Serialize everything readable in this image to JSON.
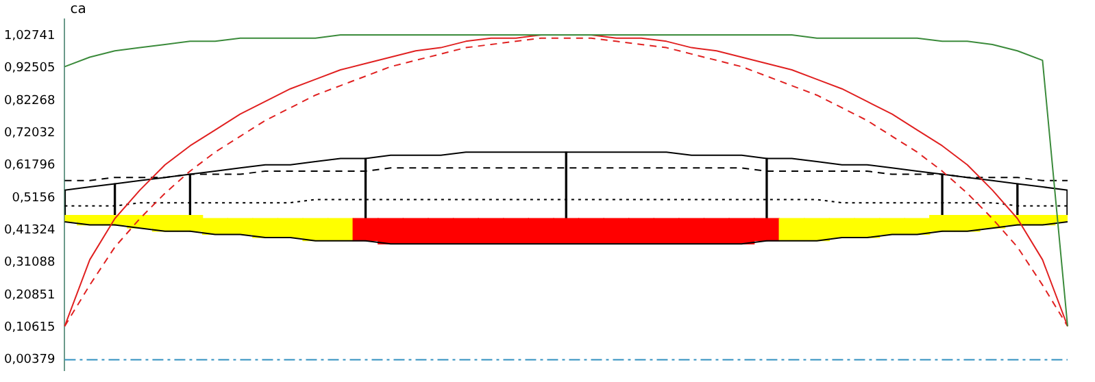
{
  "chart_data": {
    "type": "line",
    "ylabel": "ca",
    "categories": [
      null,
      null,
      null,
      null,
      null,
      null,
      null,
      null,
      null,
      null,
      null,
      null,
      null,
      null,
      null,
      null,
      null,
      null,
      null,
      null,
      null,
      null,
      null,
      null,
      null,
      null,
      null,
      null,
      null,
      null,
      null,
      null,
      null,
      null,
      null,
      null,
      null,
      null,
      null,
      null,
      null
    ],
    "series": [
      {
        "color": "#3a8a3a",
        "line_style": "solid",
        "values": [
          0.93,
          0.96,
          0.98,
          0.99,
          1.0,
          1.01,
          1.01,
          1.02,
          1.02,
          1.02,
          1.02,
          1.03,
          1.03,
          1.03,
          1.03,
          1.03,
          1.03,
          1.03,
          1.03,
          1.03,
          1.03,
          1.03,
          1.03,
          1.03,
          1.03,
          1.03,
          1.03,
          1.03,
          1.03,
          1.03,
          1.02,
          1.02,
          1.02,
          1.02,
          1.02,
          1.01,
          1.01,
          1.0,
          0.98,
          0.95,
          0.11
        ]
      },
      {
        "color": "#e02020",
        "line_style": "solid",
        "values": [
          0.11,
          0.32,
          0.45,
          0.54,
          0.62,
          0.68,
          0.73,
          0.78,
          0.82,
          0.86,
          0.89,
          0.92,
          0.94,
          0.96,
          0.98,
          0.99,
          1.01,
          1.02,
          1.02,
          1.03,
          1.03,
          1.03,
          1.02,
          1.02,
          1.01,
          0.99,
          0.98,
          0.96,
          0.94,
          0.92,
          0.89,
          0.86,
          0.82,
          0.78,
          0.73,
          0.68,
          0.62,
          0.54,
          0.45,
          0.32,
          0.11
        ]
      },
      {
        "color": "#e02020",
        "line_style": "dashed",
        "values": [
          0.11,
          0.24,
          0.36,
          0.45,
          0.53,
          0.6,
          0.66,
          0.71,
          0.76,
          0.8,
          0.84,
          0.87,
          0.9,
          0.93,
          0.95,
          0.97,
          0.99,
          1.0,
          1.01,
          1.02,
          1.02,
          1.02,
          1.01,
          1.0,
          0.99,
          0.97,
          0.95,
          0.93,
          0.9,
          0.87,
          0.84,
          0.8,
          0.76,
          0.71,
          0.66,
          0.6,
          0.53,
          0.45,
          0.36,
          0.24,
          0.11
        ]
      },
      {
        "color": "#000000",
        "line_style": "solid",
        "values": [
          0.54,
          0.55,
          0.56,
          0.57,
          0.58,
          0.59,
          0.6,
          0.61,
          0.62,
          0.62,
          0.63,
          0.64,
          0.64,
          0.65,
          0.65,
          0.65,
          0.66,
          0.66,
          0.66,
          0.66,
          0.66,
          0.66,
          0.66,
          0.66,
          0.66,
          0.65,
          0.65,
          0.65,
          0.64,
          0.64,
          0.63,
          0.62,
          0.62,
          0.61,
          0.6,
          0.59,
          0.58,
          0.57,
          0.56,
          0.55,
          0.54
        ]
      },
      {
        "color": "#000000",
        "line_style": "dashed",
        "values": [
          0.57,
          0.57,
          0.58,
          0.58,
          0.58,
          0.59,
          0.59,
          0.59,
          0.6,
          0.6,
          0.6,
          0.6,
          0.6,
          0.61,
          0.61,
          0.61,
          0.61,
          0.61,
          0.61,
          0.61,
          0.61,
          0.61,
          0.61,
          0.61,
          0.61,
          0.61,
          0.61,
          0.61,
          0.6,
          0.6,
          0.6,
          0.6,
          0.6,
          0.59,
          0.59,
          0.59,
          0.58,
          0.58,
          0.58,
          0.57,
          0.57
        ]
      },
      {
        "color": "#000000",
        "line_style": "dotted",
        "values": [
          0.49,
          0.49,
          0.49,
          0.5,
          0.5,
          0.5,
          0.5,
          0.5,
          0.5,
          0.5,
          0.51,
          0.51,
          0.51,
          0.51,
          0.51,
          0.51,
          0.51,
          0.51,
          0.51,
          0.51,
          0.51,
          0.51,
          0.51,
          0.51,
          0.51,
          0.51,
          0.51,
          0.51,
          0.51,
          0.51,
          0.51,
          0.5,
          0.5,
          0.5,
          0.5,
          0.5,
          0.5,
          0.5,
          0.49,
          0.49,
          0.49
        ]
      },
      {
        "color": "#000000",
        "line_style": "solid",
        "values": [
          0.44,
          0.43,
          0.43,
          0.42,
          0.41,
          0.41,
          0.4,
          0.4,
          0.39,
          0.39,
          0.38,
          0.38,
          0.38,
          0.37,
          0.37,
          0.37,
          0.37,
          0.37,
          0.37,
          0.37,
          0.37,
          0.37,
          0.37,
          0.37,
          0.37,
          0.37,
          0.37,
          0.37,
          0.38,
          0.38,
          0.38,
          0.39,
          0.39,
          0.4,
          0.4,
          0.41,
          0.41,
          0.42,
          0.43,
          0.43,
          0.44
        ]
      },
      {
        "type": "bar",
        "colors": [
          "#ffff00",
          "#ffff00",
          "#ffff00",
          "#ffff00",
          "#ffff00",
          "#ffff00",
          "#ffff00",
          "#ffff00",
          "#ffff00",
          "#ffff00",
          "#ffff00",
          "#ffff00",
          "#ff0000",
          "#ff0000",
          "#ff0000",
          "#ff0000",
          "#ff0000",
          "#ff0000",
          "#ff0000",
          "#ff0000",
          "#ff0000",
          "#ff0000",
          "#ff0000",
          "#ff0000",
          "#ff0000",
          "#ff0000",
          "#ff0000",
          "#ff0000",
          "#ff0000",
          "#ffff00",
          "#ffff00",
          "#ffff00",
          "#ffff00",
          "#ffff00",
          "#ffff00",
          "#ffff00",
          "#ffff00",
          "#ffff00",
          "#ffff00",
          "#ffff00",
          "#ffff00"
        ],
        "values": [
          0.02,
          0.03,
          0.03,
          0.04,
          0.05,
          0.05,
          0.05,
          0.05,
          0.06,
          0.06,
          0.07,
          0.07,
          0.07,
          0.08,
          0.08,
          0.08,
          0.08,
          0.08,
          0.08,
          0.08,
          0.08,
          0.08,
          0.08,
          0.08,
          0.08,
          0.08,
          0.08,
          0.08,
          0.07,
          0.07,
          0.07,
          0.06,
          0.06,
          0.05,
          0.05,
          0.05,
          0.05,
          0.04,
          0.03,
          0.03,
          0.02
        ],
        "base": [
          0.44,
          0.43,
          0.43,
          0.42,
          0.41,
          0.41,
          0.4,
          0.4,
          0.39,
          0.39,
          0.38,
          0.38,
          0.38,
          0.37,
          0.37,
          0.37,
          0.37,
          0.37,
          0.37,
          0.37,
          0.37,
          0.37,
          0.37,
          0.37,
          0.37,
          0.37,
          0.37,
          0.37,
          0.38,
          0.38,
          0.38,
          0.39,
          0.39,
          0.4,
          0.4,
          0.41,
          0.41,
          0.42,
          0.43,
          0.43,
          0.44
        ]
      },
      {
        "type": "bar",
        "color": "#000000",
        "values": [
          0.1,
          null,
          0.13,
          null,
          null,
          0.18,
          null,
          null,
          null,
          null,
          null,
          null,
          0.26,
          null,
          null,
          null,
          null,
          null,
          null,
          null,
          0.29,
          null,
          null,
          null,
          null,
          null,
          null,
          null,
          0.26,
          null,
          null,
          null,
          null,
          null,
          null,
          0.18,
          null,
          null,
          0.13,
          null,
          0.1
        ],
        "base": [
          0.44,
          null,
          0.43,
          null,
          null,
          0.41,
          null,
          null,
          null,
          null,
          null,
          null,
          0.38,
          null,
          null,
          null,
          null,
          null,
          null,
          null,
          0.37,
          null,
          null,
          null,
          null,
          null,
          null,
          null,
          0.38,
          null,
          null,
          null,
          null,
          null,
          null,
          0.41,
          null,
          null,
          0.43,
          null,
          0.44
        ]
      }
    ],
    "ylim": [
      -0.03,
      1.08
    ],
    "yticks": [
      {
        "value": 0.00379,
        "label": "0,00379"
      },
      {
        "value": 0.10615,
        "label": "0,10615"
      },
      {
        "value": 0.20851,
        "label": "0,20851"
      },
      {
        "value": 0.31088,
        "label": "0,31088"
      },
      {
        "value": 0.41324,
        "label": "0,41324"
      },
      {
        "value": 0.5156,
        "label": "0,5156"
      },
      {
        "value": 0.61796,
        "label": "0,61796"
      },
      {
        "value": 0.72032,
        "label": "0,72032"
      },
      {
        "value": 0.82268,
        "label": "0,82268"
      },
      {
        "value": 0.92505,
        "label": "0,92505"
      },
      {
        "value": 1.02741,
        "label": "1,02741"
      }
    ],
    "ref_lines": [
      {
        "axis": "y",
        "value": 0.00379,
        "color": "#3090c0",
        "line_style": "dashdot"
      }
    ],
    "marker": "none",
    "grid": false,
    "legend": false
  }
}
